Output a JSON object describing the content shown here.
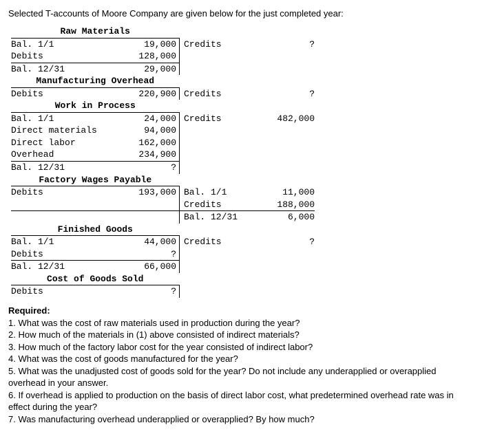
{
  "title": "Selected T-accounts of Moore Company are given below for the just completed year:",
  "accounts": {
    "rm": {
      "header": "Raw Materials",
      "rows": [
        {
          "l": "Bal. 1/1",
          "lv": "19,000",
          "r": "Credits",
          "rv": "?"
        },
        {
          "l": "Debits",
          "lv": "128,000",
          "r": "",
          "rv": ""
        },
        {
          "l": "Bal. 12/31",
          "lv": "29,000",
          "r": "",
          "rv": ""
        }
      ]
    },
    "moh": {
      "header": "Manufacturing Overhead",
      "rows": [
        {
          "l": "Debits",
          "lv": "220,900",
          "r": "Credits",
          "rv": "?"
        }
      ]
    },
    "wip": {
      "header": "Work in Process",
      "rows": [
        {
          "l": "Bal. 1/1",
          "lv": "24,000",
          "r": "Credits",
          "rv": "482,000"
        },
        {
          "l": "Direct materials",
          "lv": "94,000",
          "r": "",
          "rv": ""
        },
        {
          "l": "Direct labor",
          "lv": "162,000",
          "r": "",
          "rv": ""
        },
        {
          "l": "Overhead",
          "lv": "234,900",
          "r": "",
          "rv": ""
        },
        {
          "l": "Bal. 12/31",
          "lv": "?",
          "r": "",
          "rv": ""
        }
      ]
    },
    "fwp": {
      "header": "Factory Wages Payable",
      "rows": [
        {
          "l": "Debits",
          "lv": "193,000",
          "r": "Bal. 1/1",
          "rv": "11,000"
        },
        {
          "l": "",
          "lv": "",
          "r": "Credits",
          "rv": "188,000"
        },
        {
          "l": "",
          "lv": "",
          "r": "Bal. 12/31",
          "rv": "6,000"
        }
      ]
    },
    "fg": {
      "header": "Finished Goods",
      "rows": [
        {
          "l": "Bal. 1/1",
          "lv": "44,000",
          "r": "Credits",
          "rv": "?"
        },
        {
          "l": "Debits",
          "lv": "?",
          "r": "",
          "rv": ""
        },
        {
          "l": "Bal. 12/31",
          "lv": "66,000",
          "r": "",
          "rv": ""
        }
      ]
    },
    "cogs": {
      "header": "Cost of Goods Sold",
      "rows": [
        {
          "l": "Debits",
          "lv": "?",
          "r": "",
          "rv": ""
        }
      ]
    }
  },
  "required": {
    "label": "Required:",
    "items": [
      "1. What was the cost of raw materials used in production during the year?",
      "2. How much of the materials in (1) above consisted of indirect materials?",
      "3. How much of the factory labor cost for the year consisted of indirect labor?",
      "4. What was the cost of goods manufactured for the year?",
      "5. What was the unadjusted cost of goods sold for the year? Do not include any underapplied or overapplied overhead in your answer.",
      "6. If overhead is applied to production on the basis of direct labor cost, what predetermined overhead rate was in effect during the year?",
      "7. Was manufacturing overhead underapplied or overapplied? By how much?"
    ]
  }
}
